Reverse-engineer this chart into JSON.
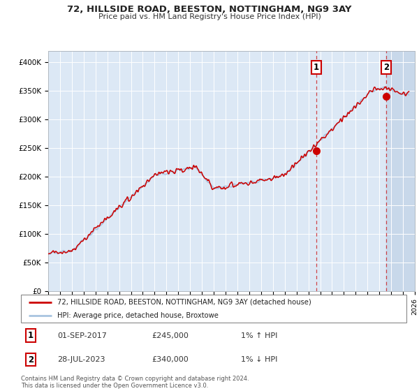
{
  "title": "72, HILLSIDE ROAD, BEESTON, NOTTINGHAM, NG9 3AY",
  "subtitle": "Price paid vs. HM Land Registry's House Price Index (HPI)",
  "xlim": [
    1995,
    2026
  ],
  "ylim": [
    0,
    420000
  ],
  "yticks": [
    0,
    50000,
    100000,
    150000,
    200000,
    250000,
    300000,
    350000,
    400000
  ],
  "ytick_labels": [
    "£0",
    "£50K",
    "£100K",
    "£150K",
    "£200K",
    "£250K",
    "£300K",
    "£350K",
    "£400K"
  ],
  "hpi_color": "#a8c4e0",
  "price_color": "#cc0000",
  "bg_color": "#dce8f5",
  "hatch_color": "#c8d8ea",
  "sale1_date": 2017.67,
  "sale1_price": 245000,
  "sale2_date": 2023.57,
  "sale2_price": 340000,
  "legend_label1": "72, HILLSIDE ROAD, BEESTON, NOTTINGHAM, NG9 3AY (detached house)",
  "legend_label2": "HPI: Average price, detached house, Broxtowe",
  "annot1_date_str": "01-SEP-2017",
  "annot1_price_str": "£245,000",
  "annot1_hpi_str": "1% ↑ HPI",
  "annot2_date_str": "28-JUL-2023",
  "annot2_price_str": "£340,000",
  "annot2_hpi_str": "1% ↓ HPI",
  "copyright_text": "Contains HM Land Registry data © Crown copyright and database right 2024.\nThis data is licensed under the Open Government Licence v3.0."
}
